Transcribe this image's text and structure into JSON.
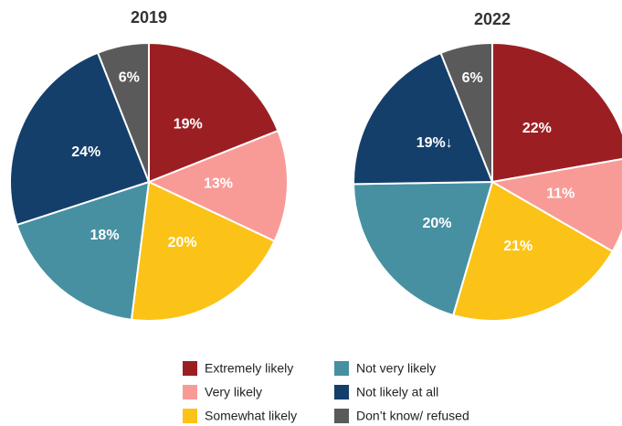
{
  "chart_data": [
    {
      "type": "pie",
      "title": "2019",
      "categories": [
        "Extremely likely",
        "Very likely",
        "Somewhat likely",
        "Not very likely",
        "Not likely at all",
        "Don’t know/ refused"
      ],
      "colors": [
        "#9b1f22",
        "#f89b97",
        "#fbc317",
        "#4790a2",
        "#143f6b",
        "#5a5a5a"
      ],
      "values": [
        19,
        13,
        20,
        18,
        24,
        6
      ],
      "value_labels": [
        "19%",
        "13%",
        "20%",
        "18%",
        "24%",
        "6%"
      ]
    },
    {
      "type": "pie",
      "title": "2022",
      "categories": [
        "Extremely likely",
        "Very likely",
        "Somewhat likely",
        "Not very likely",
        "Not likely at all",
        "Don’t know/ refused"
      ],
      "colors": [
        "#9b1f22",
        "#f89b97",
        "#fbc317",
        "#4790a2",
        "#143f6b",
        "#5a5a5a"
      ],
      "values": [
        22,
        11,
        21,
        20,
        19,
        6
      ],
      "value_labels": [
        "22%",
        "11%",
        "21%",
        "20%",
        "19%↓",
        "6%"
      ]
    }
  ]
}
